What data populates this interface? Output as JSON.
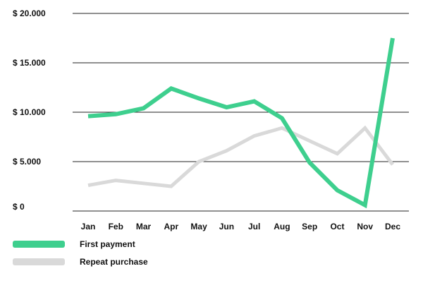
{
  "chart_data": {
    "type": "line",
    "categories": [
      "Jan",
      "Feb",
      "Mar",
      "Apr",
      "May",
      "Jun",
      "Jul",
      "Aug",
      "Sep",
      "Oct",
      "Nov",
      "Dec"
    ],
    "y_tick_labels": [
      "$ 20.000",
      "$ 15.000",
      "$ 10.000",
      "$ 5.000",
      "$ 0"
    ],
    "y_tick_values": [
      20000,
      15000,
      10000,
      5000,
      0
    ],
    "ylim": [
      0,
      20000
    ],
    "grid": true,
    "legend_position": "bottom-left",
    "series": [
      {
        "name": "First payment",
        "color": "#3ecf8e",
        "values": [
          9600,
          9800,
          10400,
          12400,
          11400,
          10500,
          11100,
          9400,
          4900,
          2100,
          600,
          17500
        ]
      },
      {
        "name": "Repeat purchase",
        "color": "#d9d9d9",
        "values": [
          2600,
          3100,
          2800,
          2500,
          5000,
          6100,
          7600,
          8400,
          7100,
          5800,
          8400,
          4700
        ]
      }
    ]
  }
}
